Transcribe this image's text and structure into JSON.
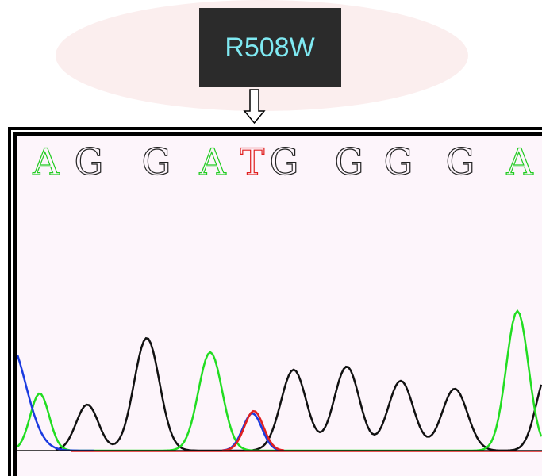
{
  "label": "R508W",
  "sequence": [
    "A",
    "G",
    "G",
    "A",
    "T",
    "G",
    "G",
    "G",
    "G",
    "A"
  ]
}
